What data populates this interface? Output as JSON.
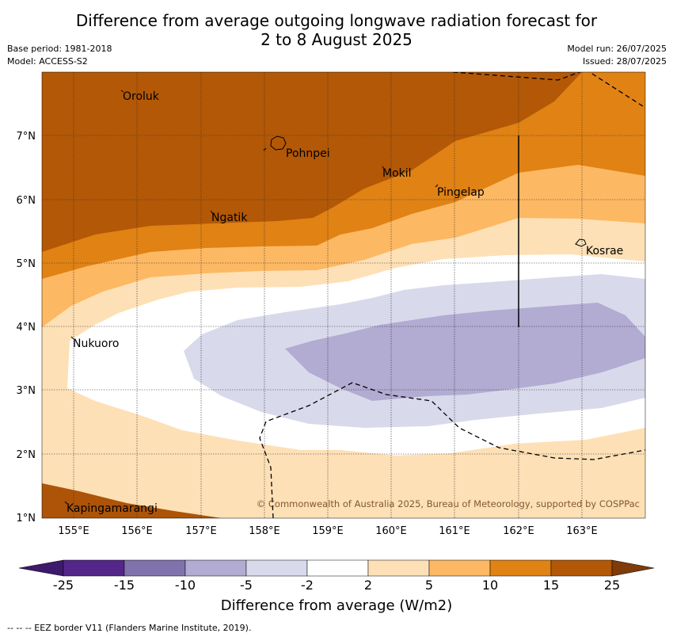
{
  "title_line1": "Difference from average outgoing longwave radiation forecast for",
  "title_line2": "2 to 8 August 2025",
  "base_period": "Base period: 1981-2018",
  "model": "Model: ACCESS-S2",
  "model_run": "Model run: 26/07/2025",
  "issued": "Issued: 28/07/2025",
  "copyright": "© Commonwealth of Australia 2025, Bureau of Meteorology, supported by COSPPac",
  "places": [
    "Oroluk",
    "Pohnpei",
    "Mokil",
    "Pingelap",
    "Ngatik",
    "Kosrae",
    "Nukuoro",
    "Kapingamarangi"
  ],
  "lat_labels": [
    "7°N",
    "6°N",
    "5°N",
    "4°N",
    "3°N",
    "2°N",
    "1°N"
  ],
  "lon_labels": [
    "155°E",
    "156°E",
    "157°E",
    "158°E",
    "159°E",
    "160°E",
    "161°E",
    "162°E",
    "163°E"
  ],
  "colorbar": {
    "ticks": [
      "-25",
      "-15",
      "-10",
      "-5",
      "-2",
      "2",
      "5",
      "10",
      "15",
      "25"
    ],
    "colors": [
      "#3d1a6b",
      "#54268a",
      "#8073ac",
      "#b2abd2",
      "#d8daeb",
      "#ffffff",
      "#fee0b6",
      "#fdb863",
      "#e08214",
      "#b35806",
      "#7f3b08"
    ],
    "label": "Difference from average (W/m2)"
  },
  "eez_note": "--  --  -- EEZ border V11 (Flanders Marine Institute, 2019)."
}
